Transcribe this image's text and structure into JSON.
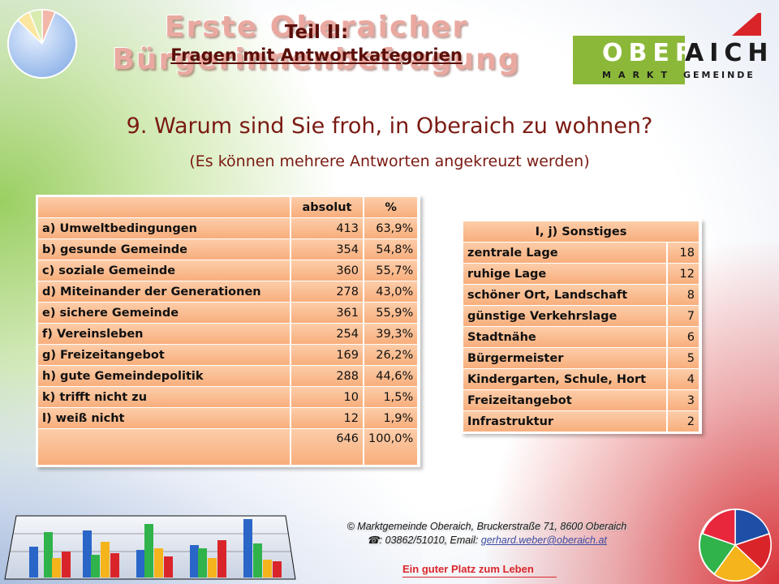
{
  "slide": {
    "title_bg": "Erste Oberaicher Bürgerinnenbefragung",
    "title_line1": "Teil II:",
    "title_line2": "Fragen mit Antwortkategorien",
    "question": "9. Warum sind Sie froh, in Oberaich zu wohnen?",
    "hint": "(Es können mehrere Antworten angekreuzt werden)"
  },
  "logo": {
    "word_left": "OBER",
    "word_right": "AICH",
    "sub_left": "MARKT",
    "sub_right": "GEMEINDE",
    "accent": "#8cb83a",
    "roof_color": "#d9252a"
  },
  "main_table": {
    "header": [
      "",
      "absolut",
      "%"
    ],
    "rows": [
      {
        "label": "a) Umweltbedingungen",
        "abs": "413",
        "pct": "63,9%"
      },
      {
        "label": "b) gesunde Gemeinde",
        "abs": "354",
        "pct": "54,8%"
      },
      {
        "label": "c) soziale Gemeinde",
        "abs": "360",
        "pct": "55,7%"
      },
      {
        "label": "d) Miteinander der Generationen",
        "abs": "278",
        "pct": "43,0%"
      },
      {
        "label": "e) sichere Gemeinde",
        "abs": "361",
        "pct": "55,9%"
      },
      {
        "label": "f) Vereinsleben",
        "abs": "254",
        "pct": "39,3%"
      },
      {
        "label": "g) Freizeitangebot",
        "abs": "169",
        "pct": "26,2%"
      },
      {
        "label": "h) gute Gemeindepolitik",
        "abs": "288",
        "pct": "44,6%"
      },
      {
        "label": "k) trifft nicht zu",
        "abs": "10",
        "pct": "1,5%"
      },
      {
        "label": "l) weiß nicht",
        "abs": "12",
        "pct": "1,9%"
      }
    ],
    "total": {
      "label": "",
      "abs": "646",
      "pct": "100,0%"
    }
  },
  "side_table": {
    "header": "I, j) Sonstiges",
    "rows": [
      {
        "label": "zentrale Lage",
        "value": "18"
      },
      {
        "label": "ruhige Lage",
        "value": "12"
      },
      {
        "label": "schöner Ort, Landschaft",
        "value": "8"
      },
      {
        "label": "günstige Verkehrslage",
        "value": "7"
      },
      {
        "label": "Stadtnähe",
        "value": "6"
      },
      {
        "label": "Bürgermeister",
        "value": "5"
      },
      {
        "label": "Kindergarten, Schule, Hort",
        "value": "4"
      },
      {
        "label": "Freizeitangebot",
        "value": "3"
      },
      {
        "label": "Infrastruktur",
        "value": "2"
      }
    ]
  },
  "footer": {
    "line1": "© Marktgemeinde Oberaich, Bruckerstraße 71, 8600 Oberaich",
    "phone_prefix": ": 03862/51010, Email: ",
    "email": "gerhard.weber@oberaich.at",
    "slogan": "Ein guter Platz zum Leben"
  },
  "colors": {
    "title_dark": "#5a0f0a",
    "question": "#7a1a12",
    "cell_top": "#fccda9",
    "cell_bottom": "#f8ae7c",
    "slogan": "#d9252a"
  }
}
